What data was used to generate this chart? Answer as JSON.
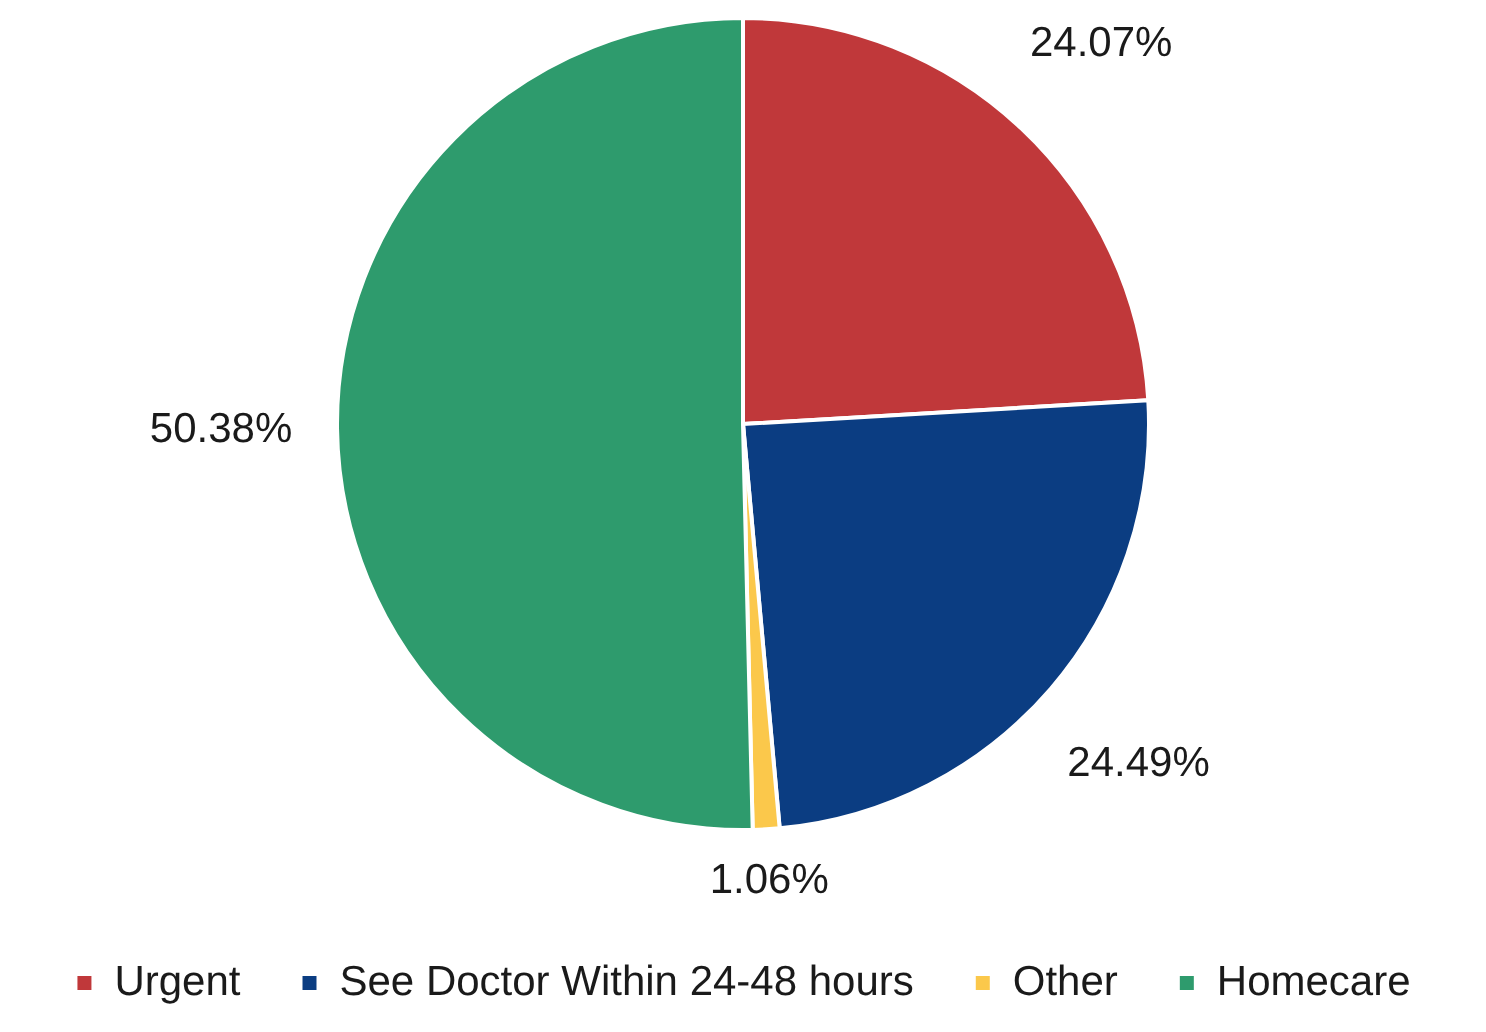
{
  "chart_data": {
    "type": "pie",
    "categories": [
      "Urgent",
      "See Doctor Within 24-48 hours",
      "Other",
      "Homecare"
    ],
    "values": [
      24.07,
      24.49,
      1.06,
      50.38
    ],
    "colors": [
      "#c0383a",
      "#0b3d82",
      "#fbc84b",
      "#2e9b6d"
    ],
    "value_labels": [
      "24.07%",
      "24.49%",
      "1.06%",
      "50.38%"
    ],
    "legend": "bottom"
  }
}
